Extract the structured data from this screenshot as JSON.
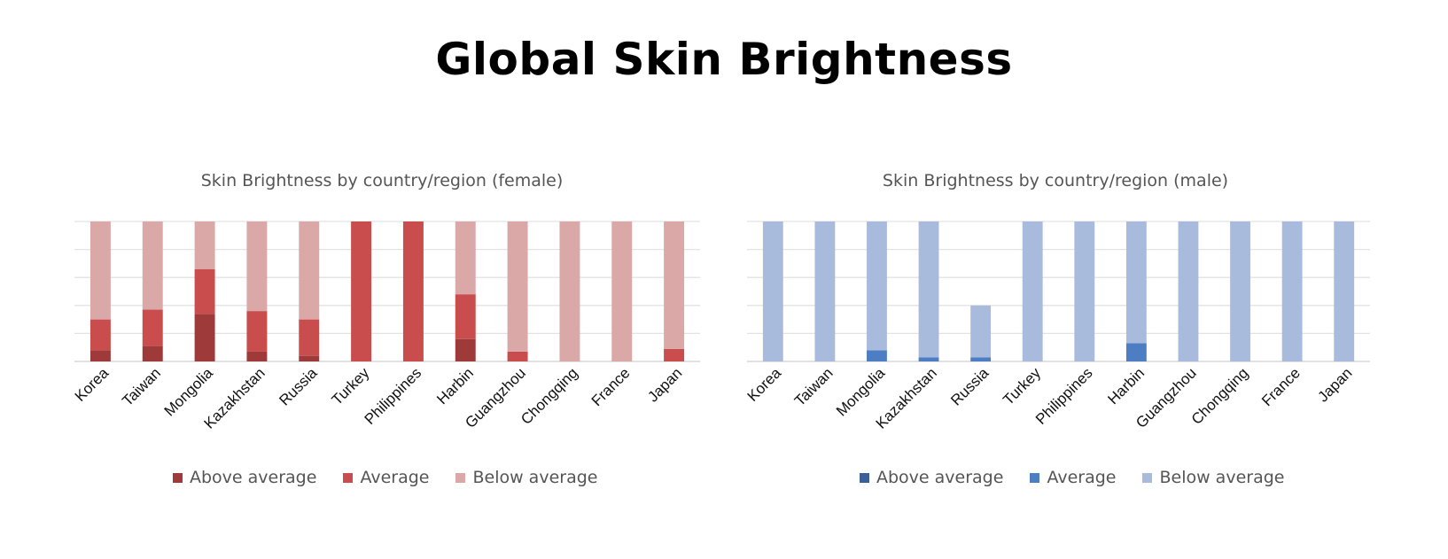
{
  "page": {
    "title": "Global Skin Brightness"
  },
  "chart_data": [
    {
      "type": "bar",
      "stacked": true,
      "title": "Skin Brightness by country/region (female)",
      "categories": [
        "Korea",
        "Taiwan",
        "Mongolia",
        "Kazakhstan",
        "Russia",
        "Turkey",
        "Philippines",
        "Harbin",
        "Guangzhou",
        "Chongqing",
        "France",
        "Japan"
      ],
      "series": [
        {
          "name": "Above average",
          "color": "#9e3a3a",
          "values": [
            8,
            11,
            34,
            7,
            4,
            0,
            0,
            16,
            0,
            0,
            0,
            0
          ]
        },
        {
          "name": "Average",
          "color": "#c94d4d",
          "values": [
            22,
            26,
            32,
            29,
            26,
            100,
            100,
            32,
            7,
            0,
            0,
            9
          ]
        },
        {
          "name": "Below average",
          "color": "#dba8a8",
          "values": [
            70,
            63,
            34,
            64,
            70,
            0,
            0,
            52,
            93,
            100,
            100,
            91
          ]
        }
      ],
      "ylim": [
        0,
        100
      ],
      "grid": true,
      "legend": "bottom"
    },
    {
      "type": "bar",
      "stacked": true,
      "title": "Skin Brightness by country/region (male)",
      "categories": [
        "Korea",
        "Taiwan",
        "Mongolia",
        "Kazakhstan",
        "Russia",
        "Turkey",
        "Philippines",
        "Harbin",
        "Guangzhou",
        "Chongqing",
        "France",
        "Japan"
      ],
      "series": [
        {
          "name": "Above average",
          "color": "#3b5f99",
          "values": [
            0,
            0,
            0,
            0,
            0,
            0,
            0,
            0,
            0,
            0,
            0,
            0
          ]
        },
        {
          "name": "Average",
          "color": "#4d7ec4",
          "values": [
            0,
            0,
            8,
            3,
            3,
            0,
            0,
            13,
            0,
            0,
            0,
            0
          ]
        },
        {
          "name": "Below average",
          "color": "#a9bbdc",
          "values": [
            100,
            100,
            92,
            97,
            37,
            100,
            100,
            87,
            100,
            100,
            100,
            100
          ]
        }
      ],
      "ylim": [
        0,
        100
      ],
      "grid": true,
      "legend": "bottom"
    }
  ]
}
